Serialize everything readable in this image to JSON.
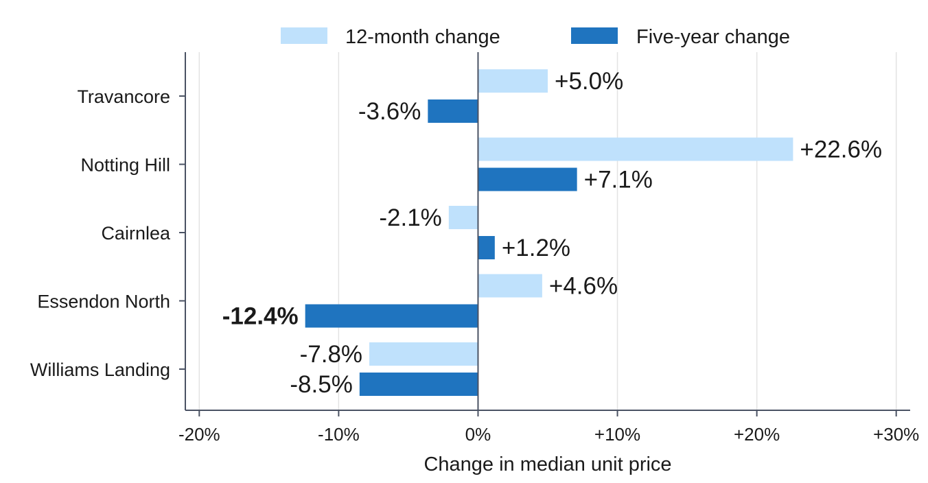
{
  "chart_data": {
    "type": "bar",
    "orientation": "horizontal",
    "categories": [
      "Travancore",
      "Notting Hill",
      "Cairnlea",
      "Essendon North",
      "Williams Landing"
    ],
    "series": [
      {
        "name": "12-month change",
        "color": "#bfe1fc",
        "values": [
          5.0,
          22.6,
          -2.1,
          4.6,
          -7.8
        ],
        "labels": [
          "+5.0%",
          "+22.6%",
          "-2.1%",
          "+4.6%",
          "-7.8%"
        ]
      },
      {
        "name": "Five-year change",
        "color": "#1f74bf",
        "values": [
          -3.6,
          7.1,
          1.2,
          -12.4,
          -8.5
        ],
        "labels": [
          "-3.6%",
          "+7.1%",
          "+1.2%",
          "-12.4%",
          "-8.5%"
        ]
      }
    ],
    "highlight": {
      "series": "Five-year change",
      "category": "Essendon North"
    },
    "xlabel": "Change in median unit price",
    "xticks": [
      -20,
      -10,
      0,
      10,
      20,
      30
    ],
    "xtick_labels": [
      "-20%",
      "-10%",
      "0%",
      "+10%",
      "+20%",
      "+30%"
    ],
    "xlim": [
      -21,
      31
    ],
    "grid": "vertical",
    "legend_position": "top",
    "axis_color": "#4a5263",
    "grid_color": "#e3e3e3"
  }
}
